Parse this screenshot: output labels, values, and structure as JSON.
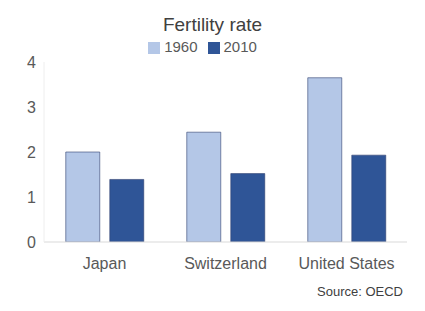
{
  "chart_data": {
    "type": "bar",
    "title": "Fertility rate",
    "categories": [
      "Japan",
      "Switzerland",
      "United States"
    ],
    "series": [
      {
        "name": "1960",
        "color": "#b4c7e7",
        "values": [
          2.0,
          2.44,
          3.65
        ]
      },
      {
        "name": "2010",
        "color": "#2f5597",
        "values": [
          1.39,
          1.52,
          1.93
        ]
      }
    ],
    "ylim": [
      0,
      4
    ],
    "yticks": [
      0,
      1,
      2,
      3,
      4
    ],
    "grid": false,
    "legend": "top",
    "annotations": [
      "Source: OECD"
    ]
  }
}
